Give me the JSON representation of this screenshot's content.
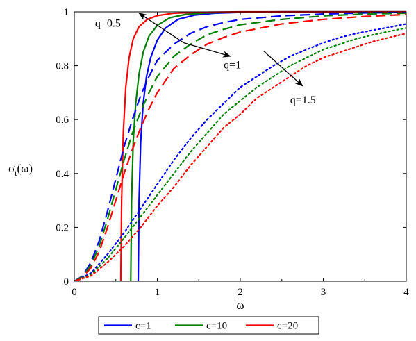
{
  "chart_data": {
    "type": "line",
    "title": "",
    "xlabel": "ω",
    "ylabel": "σ_t(ω)",
    "ylabel_main": "σ",
    "ylabel_sub": "t",
    "ylabel_tail": "(ω)",
    "xlim": [
      0,
      4
    ],
    "ylim": [
      0,
      1
    ],
    "xticks": [
      0,
      1,
      2,
      3,
      4
    ],
    "xtick_labels": [
      "0",
      "1",
      "2",
      "3",
      "4"
    ],
    "yticks": [
      0,
      0.2,
      0.4,
      0.6,
      0.8,
      1
    ],
    "ytick_labels": [
      "0",
      "0.2",
      "0.4",
      "0.6",
      "0.8",
      "1"
    ],
    "grid": false,
    "legend_position": "bottom-center",
    "legend": [
      {
        "label": "c=1",
        "color": "#0000ff"
      },
      {
        "label": "c=10",
        "color": "#008000"
      },
      {
        "label": "c=20",
        "color": "#ff0000"
      }
    ],
    "annotations": [
      {
        "text": "q=0.5",
        "x": 0.25,
        "y": 0.945
      },
      {
        "text": "q=1",
        "x": 1.8,
        "y": 0.79
      },
      {
        "text": "q=1.5",
        "x": 2.6,
        "y": 0.66
      }
    ],
    "arrows": [
      {
        "from": [
          1.32,
          0.885
        ],
        "to": [
          0.78,
          0.995
        ]
      },
      {
        "from": [
          1.32,
          0.885
        ],
        "to": [
          1.88,
          0.835
        ]
      },
      {
        "from": [
          2.28,
          0.855
        ],
        "to": [
          2.75,
          0.725
        ]
      }
    ],
    "series": [
      {
        "q": 0.5,
        "c": 1,
        "color": "#0000ff",
        "style": "solid",
        "x": [
          0.77,
          0.78,
          0.8,
          0.83,
          0.87,
          0.92,
          1.0,
          1.1,
          1.25,
          1.45,
          1.7,
          2.0,
          2.5,
          3.0,
          4.0
        ],
        "y": [
          0,
          0.3,
          0.52,
          0.66,
          0.76,
          0.83,
          0.895,
          0.94,
          0.972,
          0.988,
          0.995,
          0.998,
          1.0,
          1.0,
          1.0
        ]
      },
      {
        "q": 0.5,
        "c": 10,
        "color": "#008000",
        "style": "solid",
        "x": [
          0.68,
          0.69,
          0.71,
          0.74,
          0.78,
          0.83,
          0.9,
          1.0,
          1.15,
          1.35,
          1.6,
          2.0,
          2.5,
          3.0,
          4.0
        ],
        "y": [
          0,
          0.3,
          0.52,
          0.66,
          0.77,
          0.85,
          0.91,
          0.95,
          0.978,
          0.991,
          0.996,
          0.999,
          1.0,
          1.0,
          1.0
        ]
      },
      {
        "q": 0.5,
        "c": 20,
        "color": "#ff0000",
        "style": "solid",
        "x": [
          0.56,
          0.57,
          0.59,
          0.62,
          0.66,
          0.71,
          0.78,
          0.88,
          1.0,
          1.2,
          1.5,
          2.0,
          2.5,
          3.0,
          4.0
        ],
        "y": [
          0,
          0.3,
          0.55,
          0.72,
          0.83,
          0.9,
          0.945,
          0.972,
          0.986,
          0.995,
          0.998,
          1.0,
          1.0,
          1.0,
          1.0
        ]
      },
      {
        "q": 1,
        "c": 1,
        "color": "#0000ff",
        "style": "dashed",
        "x": [
          0.0,
          0.1,
          0.2,
          0.3,
          0.4,
          0.5,
          0.6,
          0.7,
          0.8,
          0.9,
          1.0,
          1.2,
          1.4,
          1.6,
          1.8,
          2.0,
          2.5,
          3.0,
          3.5,
          4.0
        ],
        "y": [
          0,
          0.02,
          0.07,
          0.15,
          0.26,
          0.38,
          0.5,
          0.6,
          0.69,
          0.76,
          0.82,
          0.88,
          0.92,
          0.945,
          0.96,
          0.972,
          0.985,
          0.992,
          0.996,
          0.998
        ]
      },
      {
        "q": 1,
        "c": 10,
        "color": "#008000",
        "style": "dashed",
        "x": [
          0.0,
          0.1,
          0.2,
          0.3,
          0.4,
          0.5,
          0.6,
          0.7,
          0.8,
          0.9,
          1.0,
          1.2,
          1.4,
          1.6,
          1.8,
          2.0,
          2.5,
          3.0,
          3.5,
          4.0
        ],
        "y": [
          0,
          0.018,
          0.06,
          0.13,
          0.23,
          0.34,
          0.45,
          0.55,
          0.63,
          0.7,
          0.76,
          0.835,
          0.88,
          0.915,
          0.935,
          0.952,
          0.972,
          0.985,
          0.992,
          0.995
        ]
      },
      {
        "q": 1,
        "c": 20,
        "color": "#ff0000",
        "style": "dashed",
        "x": [
          0.0,
          0.1,
          0.2,
          0.3,
          0.4,
          0.5,
          0.6,
          0.7,
          0.8,
          0.9,
          1.0,
          1.2,
          1.4,
          1.6,
          1.8,
          2.0,
          2.5,
          3.0,
          3.5,
          4.0
        ],
        "y": [
          0,
          0.015,
          0.05,
          0.11,
          0.2,
          0.3,
          0.4,
          0.49,
          0.57,
          0.64,
          0.7,
          0.79,
          0.84,
          0.88,
          0.905,
          0.925,
          0.955,
          0.972,
          0.983,
          0.99
        ]
      },
      {
        "q": 1.5,
        "c": 1,
        "color": "#0000ff",
        "style": "dotted",
        "x": [
          0.0,
          0.2,
          0.4,
          0.6,
          0.8,
          1.0,
          1.2,
          1.4,
          1.6,
          1.8,
          2.0,
          2.2,
          2.4,
          2.6,
          2.8,
          3.0,
          3.2,
          3.4,
          3.6,
          3.8,
          4.0
        ],
        "y": [
          0,
          0.03,
          0.1,
          0.18,
          0.27,
          0.36,
          0.45,
          0.53,
          0.6,
          0.66,
          0.72,
          0.76,
          0.8,
          0.835,
          0.86,
          0.885,
          0.905,
          0.92,
          0.932,
          0.943,
          0.955
        ]
      },
      {
        "q": 1.5,
        "c": 10,
        "color": "#008000",
        "style": "dotted",
        "x": [
          0.0,
          0.2,
          0.4,
          0.6,
          0.8,
          1.0,
          1.2,
          1.4,
          1.6,
          1.8,
          2.0,
          2.2,
          2.4,
          2.6,
          2.8,
          3.0,
          3.2,
          3.4,
          3.6,
          3.8,
          4.0
        ],
        "y": [
          0,
          0.025,
          0.085,
          0.16,
          0.24,
          0.32,
          0.4,
          0.48,
          0.55,
          0.62,
          0.67,
          0.72,
          0.76,
          0.8,
          0.83,
          0.86,
          0.88,
          0.9,
          0.915,
          0.928,
          0.94
        ]
      },
      {
        "q": 1.5,
        "c": 20,
        "color": "#ff0000",
        "style": "dotted",
        "x": [
          0.0,
          0.2,
          0.4,
          0.6,
          0.8,
          1.0,
          1.2,
          1.4,
          1.6,
          1.8,
          2.0,
          2.2,
          2.4,
          2.6,
          2.8,
          3.0,
          3.2,
          3.4,
          3.6,
          3.8,
          4.0
        ],
        "y": [
          0,
          0.02,
          0.07,
          0.13,
          0.2,
          0.28,
          0.35,
          0.43,
          0.5,
          0.57,
          0.62,
          0.68,
          0.72,
          0.76,
          0.8,
          0.83,
          0.85,
          0.87,
          0.89,
          0.905,
          0.92
        ]
      }
    ]
  }
}
